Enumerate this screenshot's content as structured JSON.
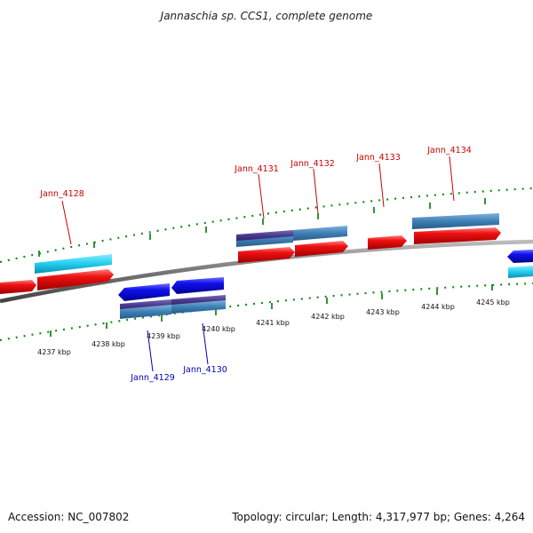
{
  "title": "Jannaschia sp. CCS1, complete genome",
  "footer": {
    "accession": "Accession: NC_007802",
    "summary": "Topology: circular; Length: 4,317,977 bp; Genes: 4,264"
  },
  "ticks": [
    "4237 kbp",
    "4238 kbp",
    "4239 kbp",
    "4240 kbp",
    "4241 kbp",
    "4242 kbp",
    "4243 kbp",
    "4244 kbp",
    "4245 kbp"
  ],
  "genes_forward": [
    "Jann_4128",
    "Jann_4131",
    "Jann_4132",
    "Jann_4133",
    "Jann_4134"
  ],
  "genes_reverse": [
    "Jann_4129",
    "Jann_4130"
  ],
  "colors": {
    "forward_cds": "#ee1111",
    "reverse_cds": "#1111ee",
    "forward_gene": "#3399cc",
    "cyan_gene": "#22ccee",
    "reverse_gene": "#4466aa",
    "backbone": "#888888",
    "dot_scale": "#1a8a1a",
    "label_forward": "#cc0000",
    "label_reverse": "#0000bb"
  }
}
